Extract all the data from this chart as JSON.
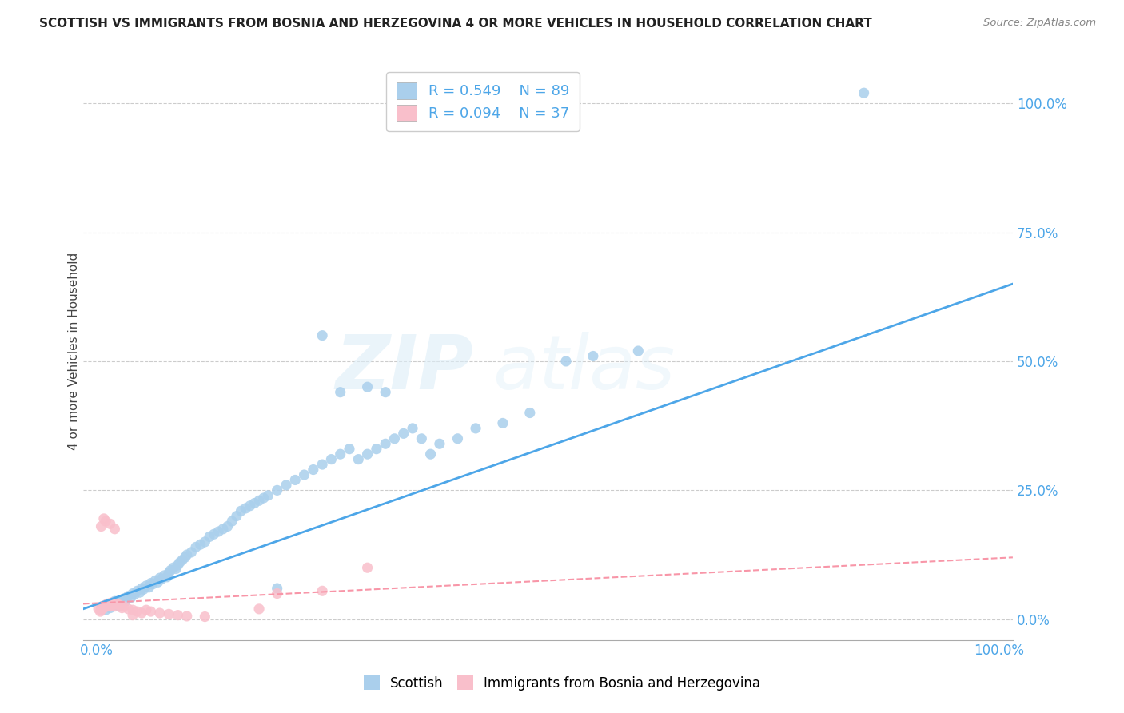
{
  "title": "SCOTTISH VS IMMIGRANTS FROM BOSNIA AND HERZEGOVINA 4 OR MORE VEHICLES IN HOUSEHOLD CORRELATION CHART",
  "source": "Source: ZipAtlas.com",
  "ylabel": "4 or more Vehicles in Household",
  "ytick_labels": [
    "0.0%",
    "25.0%",
    "50.0%",
    "75.0%",
    "100.0%"
  ],
  "ytick_values": [
    0.0,
    0.25,
    0.5,
    0.75,
    1.0
  ],
  "blue_color": "#aacfec",
  "pink_color": "#f9bfcb",
  "line_blue": "#4da6e8",
  "line_pink": "#f896a8",
  "watermark_zip": "ZIP",
  "watermark_atlas": "atlas",
  "blue_scatter_x": [
    0.005,
    0.008,
    0.01,
    0.012,
    0.015,
    0.018,
    0.02,
    0.022,
    0.025,
    0.028,
    0.03,
    0.032,
    0.035,
    0.038,
    0.04,
    0.042,
    0.045,
    0.048,
    0.05,
    0.052,
    0.055,
    0.058,
    0.06,
    0.062,
    0.065,
    0.068,
    0.07,
    0.072,
    0.075,
    0.078,
    0.08,
    0.082,
    0.085,
    0.088,
    0.09,
    0.092,
    0.095,
    0.098,
    0.1,
    0.105,
    0.11,
    0.115,
    0.12,
    0.125,
    0.13,
    0.135,
    0.14,
    0.145,
    0.15,
    0.155,
    0.16,
    0.165,
    0.17,
    0.175,
    0.18,
    0.185,
    0.19,
    0.2,
    0.21,
    0.22,
    0.23,
    0.24,
    0.25,
    0.26,
    0.27,
    0.28,
    0.29,
    0.3,
    0.31,
    0.32,
    0.33,
    0.34,
    0.35,
    0.36,
    0.37,
    0.38,
    0.4,
    0.42,
    0.45,
    0.48,
    0.52,
    0.55,
    0.6,
    0.25,
    0.27,
    0.3,
    0.32,
    0.85,
    0.2
  ],
  "blue_scatter_y": [
    0.02,
    0.025,
    0.018,
    0.03,
    0.022,
    0.028,
    0.035,
    0.032,
    0.025,
    0.038,
    0.04,
    0.035,
    0.045,
    0.042,
    0.05,
    0.048,
    0.055,
    0.052,
    0.06,
    0.058,
    0.065,
    0.062,
    0.07,
    0.068,
    0.075,
    0.072,
    0.08,
    0.078,
    0.085,
    0.082,
    0.09,
    0.095,
    0.1,
    0.098,
    0.105,
    0.11,
    0.115,
    0.12,
    0.125,
    0.13,
    0.14,
    0.145,
    0.15,
    0.16,
    0.165,
    0.17,
    0.175,
    0.18,
    0.19,
    0.2,
    0.21,
    0.215,
    0.22,
    0.225,
    0.23,
    0.235,
    0.24,
    0.25,
    0.26,
    0.27,
    0.28,
    0.29,
    0.3,
    0.31,
    0.32,
    0.33,
    0.31,
    0.32,
    0.33,
    0.34,
    0.35,
    0.36,
    0.37,
    0.35,
    0.32,
    0.34,
    0.35,
    0.37,
    0.38,
    0.4,
    0.5,
    0.51,
    0.52,
    0.55,
    0.44,
    0.45,
    0.44,
    1.02,
    0.06
  ],
  "pink_scatter_x": [
    0.002,
    0.004,
    0.005,
    0.006,
    0.008,
    0.01,
    0.012,
    0.014,
    0.015,
    0.016,
    0.018,
    0.02,
    0.022,
    0.025,
    0.028,
    0.03,
    0.035,
    0.04,
    0.045,
    0.05,
    0.055,
    0.06,
    0.07,
    0.08,
    0.09,
    0.1,
    0.12,
    0.005,
    0.008,
    0.01,
    0.015,
    0.02,
    0.2,
    0.25,
    0.3,
    0.04,
    0.18
  ],
  "pink_scatter_y": [
    0.02,
    0.015,
    0.018,
    0.025,
    0.022,
    0.028,
    0.025,
    0.03,
    0.025,
    0.032,
    0.028,
    0.025,
    0.03,
    0.028,
    0.022,
    0.025,
    0.02,
    0.018,
    0.015,
    0.012,
    0.018,
    0.015,
    0.012,
    0.01,
    0.008,
    0.006,
    0.005,
    0.18,
    0.195,
    0.19,
    0.185,
    0.175,
    0.05,
    0.055,
    0.1,
    0.008,
    0.02
  ]
}
